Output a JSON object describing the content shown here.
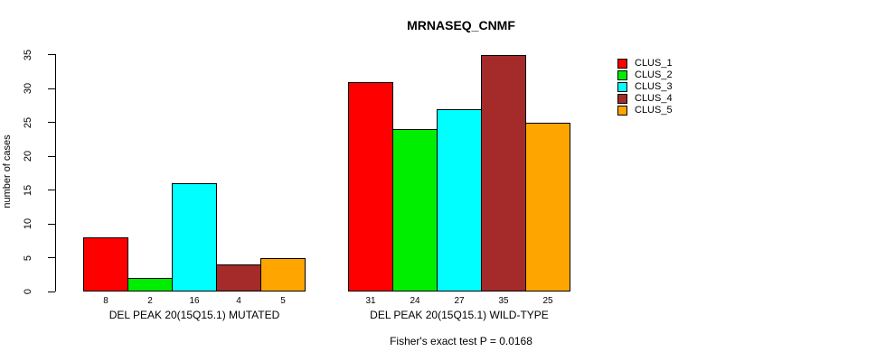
{
  "chart_data": {
    "type": "bar",
    "title": "MRNASEQ_CNMF",
    "ylabel": "number of cases",
    "xlabel": "",
    "ylim": [
      0,
      35
    ],
    "yticks": [
      0,
      5,
      10,
      15,
      20,
      25,
      30,
      35
    ],
    "grid": false,
    "legend_position": "right",
    "annotation": "Fisher's exact test P = 0.0168",
    "categories": [
      "DEL PEAK 20(15Q15.1) MUTATED",
      "DEL PEAK 20(15Q15.1) WILD-TYPE"
    ],
    "series": [
      {
        "name": "CLUS_1",
        "color": "#FF0000",
        "values": [
          8,
          31
        ]
      },
      {
        "name": "CLUS_2",
        "color": "#00EE00",
        "values": [
          2,
          24
        ]
      },
      {
        "name": "CLUS_3",
        "color": "#00FFFF",
        "values": [
          16,
          27
        ]
      },
      {
        "name": "CLUS_4",
        "color": "#A52A2A",
        "values": [
          4,
          35
        ]
      },
      {
        "name": "CLUS_5",
        "color": "#FFA500",
        "values": [
          5,
          25
        ]
      }
    ],
    "values_shown_below_bars": true,
    "colors": {
      "axis": "#000000",
      "text": "#000000",
      "bar_border": "#000000",
      "background": "#FFFFFF"
    }
  }
}
